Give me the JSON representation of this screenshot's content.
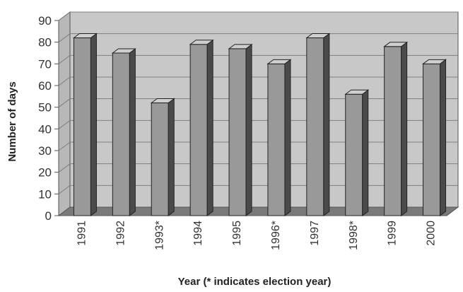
{
  "chart_data": {
    "type": "bar",
    "categories": [
      "1991",
      "1992",
      "1993*",
      "1994",
      "1995",
      "1996*",
      "1997",
      "1998*",
      "1999",
      "2000"
    ],
    "values": [
      82,
      75,
      52,
      79,
      77,
      70,
      82,
      56,
      78,
      70
    ],
    "title": "",
    "xlabel": "Year (* indicates election year)",
    "ylabel": "Number of days",
    "ylim": [
      0,
      90
    ],
    "yticks": [
      "0",
      "10",
      "20",
      "30",
      "40",
      "50",
      "60",
      "70",
      "80",
      "90"
    ],
    "style": "3d-column",
    "grid": true,
    "colors": {
      "bar_front": "#999999",
      "bar_side": "#4a4a4a",
      "bar_top": "#cfcfcf",
      "wall": "#c8c8c8",
      "floor": "#7a7a7a",
      "gridline": "#7f7f7f"
    }
  }
}
